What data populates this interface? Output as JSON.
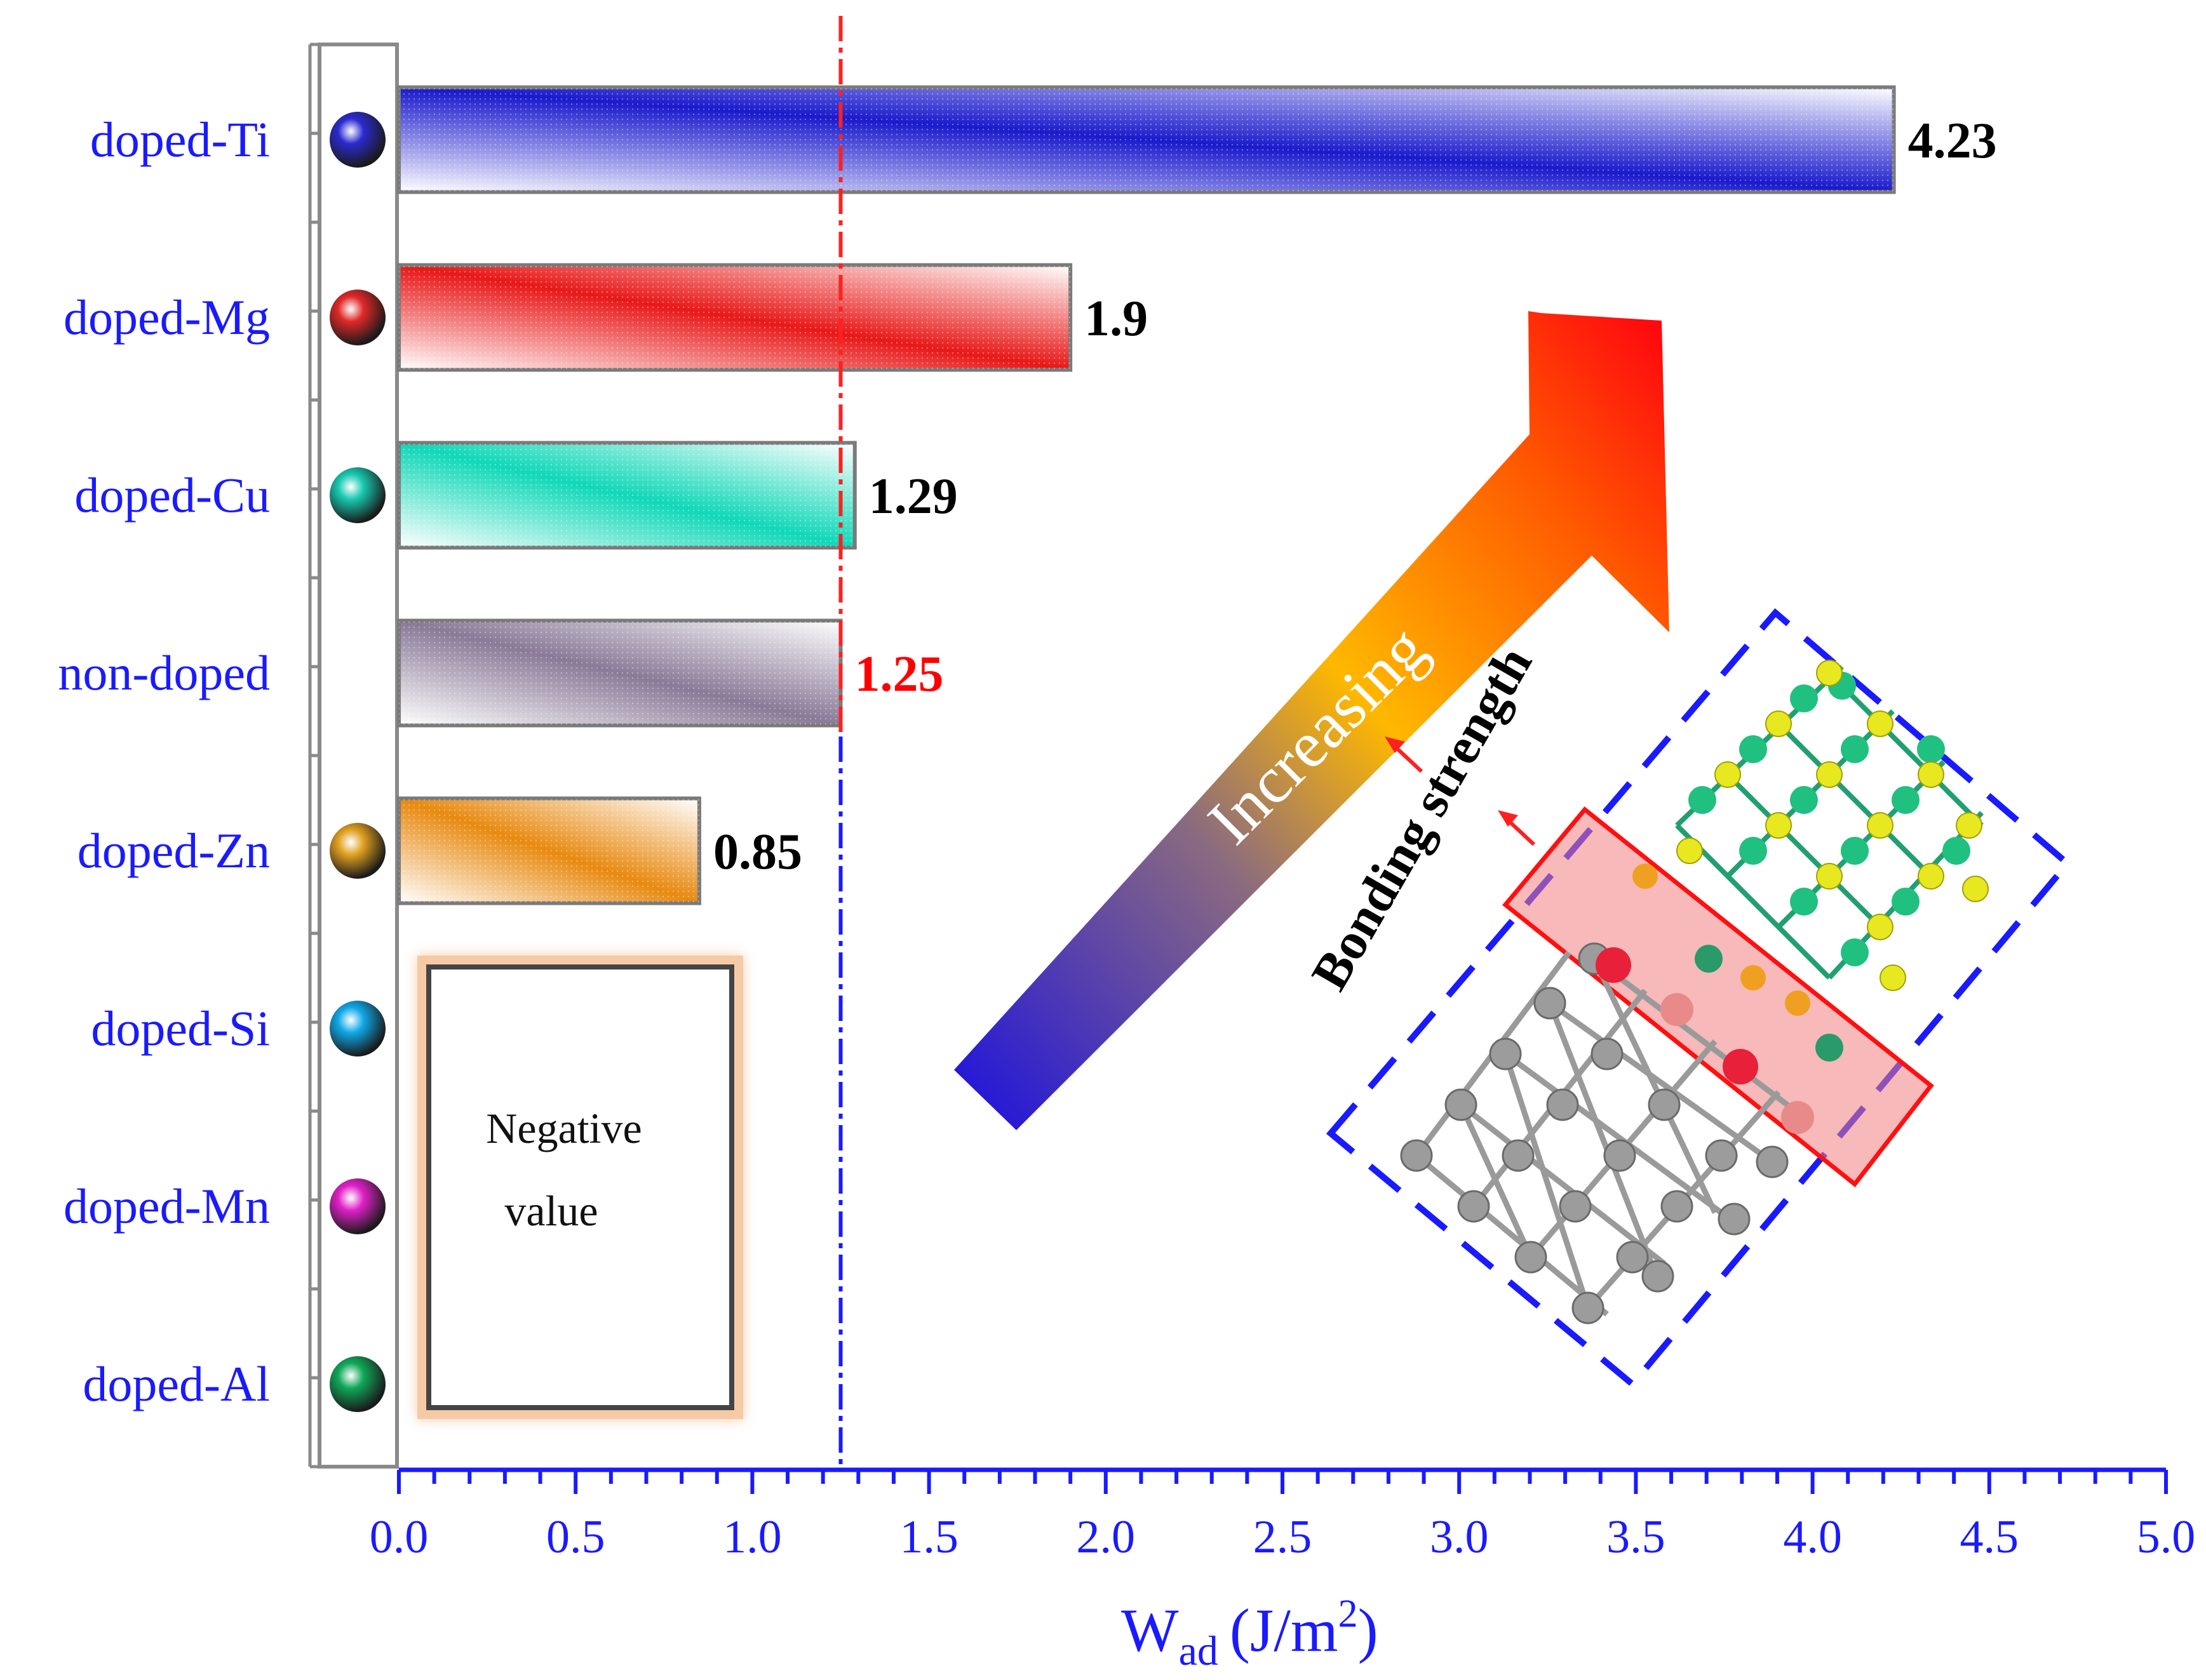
{
  "chart_data": {
    "type": "bar",
    "orientation": "horizontal",
    "xlabel_main": "W",
    "xlabel_sub": "ad",
    "xlabel_unit": "(J/m",
    "xlabel_sup": "2",
    "xlabel_close": ")",
    "xlim": [
      0,
      5
    ],
    "xticks": [
      "0.0",
      "0.5",
      "1.0",
      "1.5",
      "2.0",
      "2.5",
      "3.0",
      "3.5",
      "4.0",
      "4.5",
      "5.0"
    ],
    "reference_value": 1.25,
    "categories": [
      "doped-Ti",
      "doped-Mg",
      "doped-Cu",
      "non-doped",
      "doped-Zn",
      "doped-Si",
      "doped-Mn",
      "doped-Al"
    ],
    "values": [
      4.23,
      1.9,
      1.29,
      1.25,
      0.85,
      null,
      null,
      null
    ],
    "value_labels": [
      "4.23",
      "1.9",
      "1.29",
      "1.25",
      "0.85",
      "",
      "",
      ""
    ],
    "bar_colors": [
      "#1a1acc",
      "#e81818",
      "#10d8b8",
      "#8a7a98",
      "#e88a10",
      "",
      "",
      ""
    ],
    "label_colors": [
      "#000000",
      "#000000",
      "#000000",
      "#ff0000",
      "#000000",
      "",
      "",
      ""
    ],
    "marker_colors": [
      "#2a2ad0",
      "#e02828",
      "#18c8b0",
      "",
      "#e0a020",
      "#10a8e8",
      "#e020c8",
      "#10a858"
    ]
  },
  "annotations": {
    "negative_line1": "Negative",
    "negative_line2": "value",
    "arrow_text": "Increasing",
    "bonding_text": "Bonding strength"
  },
  "colors": {
    "axis": "#1a1aff",
    "frame": "#888888",
    "ref_line_top": "#ff2020",
    "ref_line_bottom": "#1a1aff"
  }
}
